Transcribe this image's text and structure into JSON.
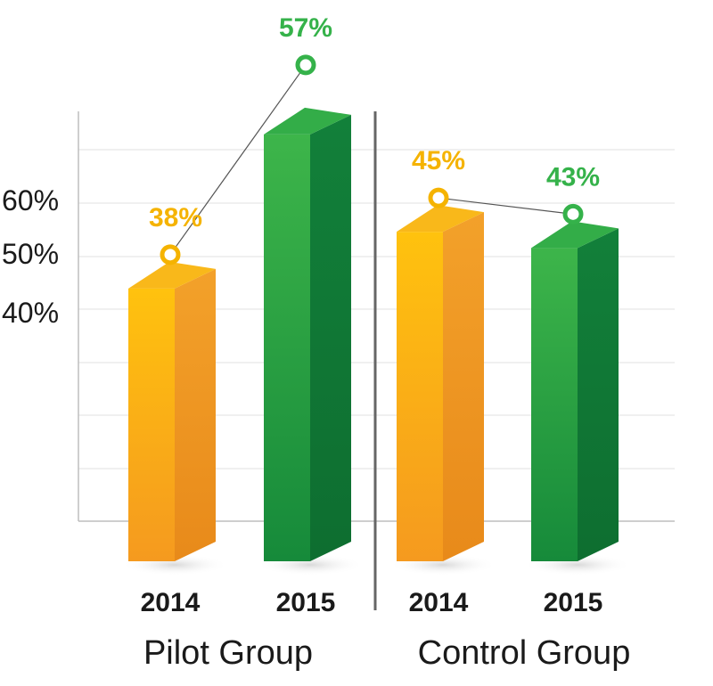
{
  "chart_data": {
    "type": "bar",
    "title": "",
    "xlabel": "",
    "ylabel": "",
    "yticks": [
      "40%",
      "50%",
      "60%"
    ],
    "groups": [
      {
        "name": "Pilot Group",
        "bars": [
          {
            "category": "2014",
            "value": 38,
            "label": "38%",
            "color": "#f5a623"
          },
          {
            "category": "2015",
            "value": 57,
            "label": "57%",
            "color": "#2e9e47"
          }
        ]
      },
      {
        "name": "Control Group",
        "bars": [
          {
            "category": "2014",
            "value": 45,
            "label": "45%",
            "color": "#f5a623"
          },
          {
            "category": "2015",
            "value": 43,
            "label": "43%",
            "color": "#2e9e47"
          }
        ]
      }
    ],
    "grid": true,
    "legend": "none"
  },
  "colors": {
    "orange": "#f5a623",
    "orange_label": "#f5b300",
    "green": "#2e9e47",
    "green_label": "#35b24a",
    "divider": "#666666",
    "grid": "#e6e6e6"
  }
}
